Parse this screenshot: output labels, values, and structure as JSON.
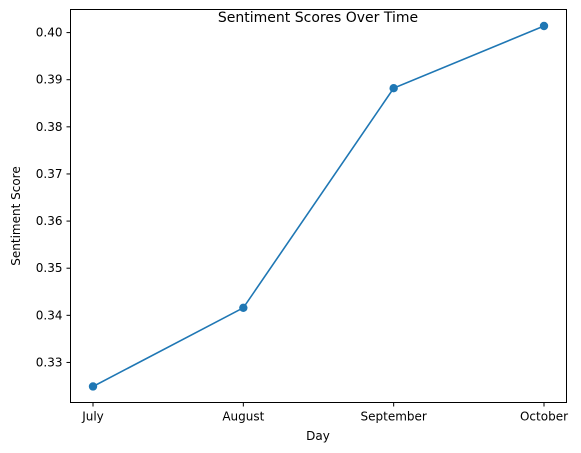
{
  "chart_data": {
    "type": "line",
    "title": "Sentiment Scores Over Time",
    "xlabel": "Day",
    "ylabel": "Sentiment Score",
    "categories": [
      "July",
      "August",
      "September",
      "October"
    ],
    "series": [
      {
        "values": [
          0.3249,
          0.3416,
          0.3882,
          0.4014
        ]
      }
    ],
    "ylim": [
      0.3215,
      0.4049
    ],
    "yticks": [
      "0.33",
      "0.34",
      "0.35",
      "0.36",
      "0.37",
      "0.38",
      "0.39",
      "0.40"
    ],
    "grid": false,
    "marker": "circle",
    "colors": {
      "line": "#1f77b4",
      "marker": "#1f77b4"
    }
  }
}
